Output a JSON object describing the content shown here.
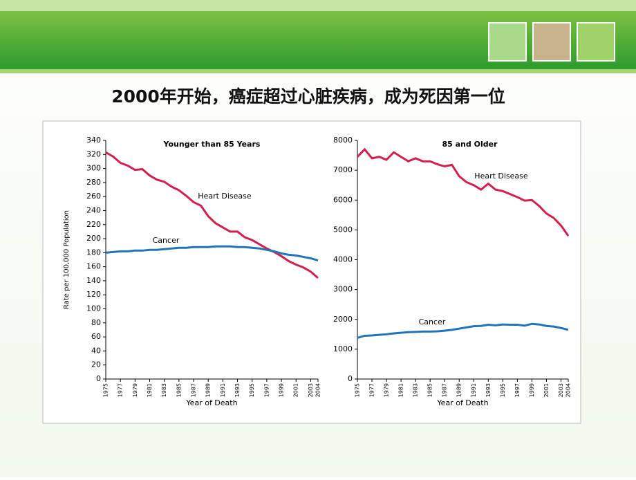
{
  "slide_title": "2000年开始，癌症超过心脏疾病，成为死因第一位",
  "chart_data": [
    {
      "type": "line",
      "title": "Younger than 85 Years",
      "xlabel": "Year of Death",
      "ylabel": "Rate per 100,000 Population",
      "x": [
        1975,
        1976,
        1977,
        1978,
        1979,
        1980,
        1981,
        1982,
        1983,
        1984,
        1985,
        1986,
        1987,
        1988,
        1989,
        1990,
        1991,
        1992,
        1993,
        1994,
        1995,
        1996,
        1997,
        1998,
        1999,
        2000,
        2001,
        2002,
        2003,
        2004
      ],
      "series": [
        {
          "name": "Heart Disease",
          "color": "#d21f4e",
          "values": [
            323,
            317,
            308,
            304,
            298,
            299,
            290,
            284,
            281,
            274,
            269,
            261,
            252,
            247,
            232,
            222,
            216,
            210,
            210,
            202,
            198,
            192,
            186,
            181,
            175,
            168,
            163,
            159,
            153,
            144
          ]
        },
        {
          "name": "Cancer",
          "color": "#2274b9",
          "values": [
            180,
            181,
            182,
            182,
            183,
            183,
            184,
            184,
            185,
            186,
            187,
            187,
            188,
            188,
            188,
            189,
            189,
            189,
            188,
            188,
            187,
            186,
            184,
            182,
            179,
            177,
            176,
            174,
            172,
            169
          ]
        }
      ],
      "xlim": [
        1975,
        2004
      ],
      "ylim": [
        0,
        340
      ],
      "xticks": [
        1975,
        1977,
        1979,
        1981,
        1983,
        1985,
        1987,
        1989,
        1991,
        1993,
        1995,
        1997,
        1999,
        2001,
        2003,
        2004
      ],
      "yticks": [
        0,
        20,
        40,
        60,
        80,
        100,
        120,
        140,
        160,
        180,
        200,
        220,
        240,
        260,
        280,
        300,
        320,
        340
      ]
    },
    {
      "type": "line",
      "title": "85 and Older",
      "xlabel": "Year of Death",
      "x": [
        1975,
        1976,
        1977,
        1978,
        1979,
        1980,
        1981,
        1982,
        1983,
        1984,
        1985,
        1986,
        1987,
        1988,
        1989,
        1990,
        1991,
        1992,
        1993,
        1994,
        1995,
        1996,
        1997,
        1998,
        1999,
        2000,
        2001,
        2002,
        2003,
        2004
      ],
      "series": [
        {
          "name": "Heart Disease",
          "color": "#d21f4e",
          "values": [
            7450,
            7700,
            7400,
            7450,
            7350,
            7600,
            7450,
            7300,
            7400,
            7300,
            7300,
            7200,
            7130,
            7180,
            6800,
            6600,
            6500,
            6350,
            6550,
            6350,
            6300,
            6200,
            6100,
            5980,
            6000,
            5800,
            5550,
            5400,
            5150,
            4800
          ]
        },
        {
          "name": "Cancer",
          "color": "#2274b9",
          "values": [
            1380,
            1450,
            1460,
            1480,
            1500,
            1530,
            1550,
            1570,
            1580,
            1590,
            1590,
            1600,
            1620,
            1650,
            1690,
            1730,
            1770,
            1780,
            1820,
            1800,
            1830,
            1820,
            1820,
            1790,
            1850,
            1830,
            1780,
            1760,
            1710,
            1650
          ]
        }
      ],
      "xlim": [
        1975,
        2004
      ],
      "ylim": [
        0,
        8000
      ],
      "xticks": [
        1975,
        1977,
        1979,
        1981,
        1983,
        1985,
        1987,
        1989,
        1991,
        1993,
        1995,
        1997,
        1999,
        2001,
        2003,
        2004
      ],
      "yticks": [
        0,
        1000,
        2000,
        3000,
        4000,
        5000,
        6000,
        7000,
        8000
      ]
    }
  ]
}
